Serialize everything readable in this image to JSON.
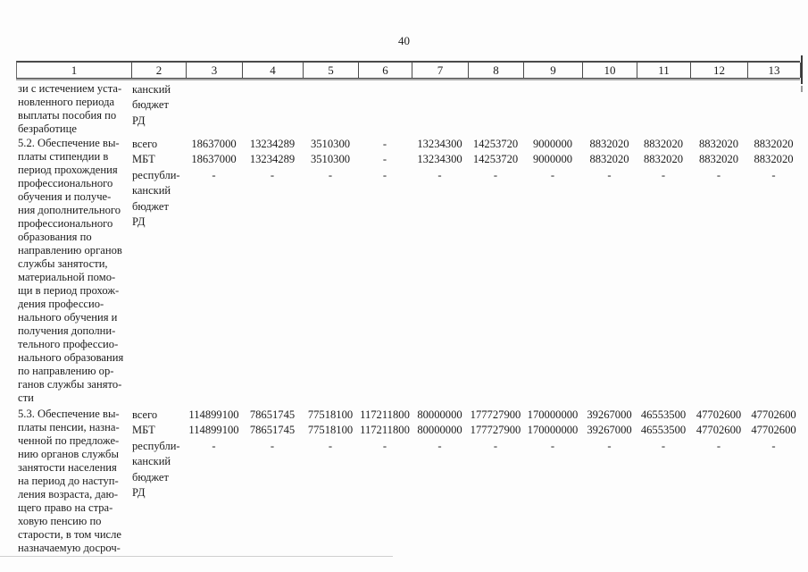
{
  "page_number": "40",
  "table": {
    "header_cols": [
      "1",
      "2",
      "3",
      "4",
      "5",
      "6",
      "7",
      "8",
      "9",
      "10",
      "11",
      "12",
      "13"
    ],
    "sections": [
      {
        "id": "continuation-of-5.1",
        "title_lines": [
          "зи с истечением уста-",
          "новленного периода",
          "выплаты пособия по",
          "безработице"
        ],
        "funding_label_lines": [
          "канский",
          "бюджет",
          "РД"
        ],
        "rows": []
      },
      {
        "id": "5.2",
        "title_lines": [
          "5.2. Обеспечение вы-",
          "платы стипендии в",
          "период прохождения",
          "профессионального",
          "обучения и получе-",
          "ния дополнительного",
          "профессионального",
          "образования по",
          "направлению органов",
          "службы занятости,",
          "материальной помо-",
          "щи в период прохож-",
          "дения профессио-",
          "нального обучения и",
          "получения дополни-",
          "тельного профессио-",
          "нального образования",
          "по направлению ор-",
          "ганов службы занято-",
          "сти"
        ],
        "rows": [
          {
            "label": "всего",
            "values": [
              "18637000",
              "13234289",
              "3510300",
              "-",
              "13234300",
              "14253720",
              "9000000",
              "8832020",
              "8832020",
              "8832020",
              "8832020"
            ]
          },
          {
            "label": "МБТ",
            "values": [
              "18637000",
              "13234289",
              "3510300",
              "-",
              "13234300",
              "14253720",
              "9000000",
              "8832020",
              "8832020",
              "8832020",
              "8832020"
            ]
          },
          {
            "label_lines": [
              "республи-",
              "канский",
              "бюджет",
              "РД"
            ],
            "values": [
              "-",
              "-",
              "-",
              "-",
              "-",
              "-",
              "-",
              "-",
              "-",
              "-",
              "-"
            ]
          }
        ]
      },
      {
        "id": "5.3",
        "title_lines": [
          "5.3. Обеспечение вы-",
          "платы пенсии, назна-",
          "ченной по предложе-",
          "нию органов службы",
          "занятости населения",
          "на период до наступ-",
          "ления возраста, даю-",
          "щего право на стра-",
          "ховую пенсию по",
          "старости, в том числе",
          "назначаемую досроч-"
        ],
        "rows": [
          {
            "label": "всего",
            "values": [
              "114899100",
              "78651745",
              "77518100",
              "117211800",
              "80000000",
              "177727900",
              "170000000",
              "39267000",
              "46553500",
              "47702600",
              "47702600"
            ]
          },
          {
            "label": "МБТ",
            "values": [
              "114899100",
              "78651745",
              "77518100",
              "117211800",
              "80000000",
              "177727900",
              "170000000",
              "39267000",
              "46553500",
              "47702600",
              "47702600"
            ]
          },
          {
            "label_lines": [
              "республи-",
              "канский",
              "бюджет",
              "РД"
            ],
            "values": [
              "-",
              "-",
              "-",
              "-",
              "-",
              "-",
              "-",
              "-",
              "-",
              "-",
              "-"
            ]
          }
        ]
      }
    ]
  }
}
